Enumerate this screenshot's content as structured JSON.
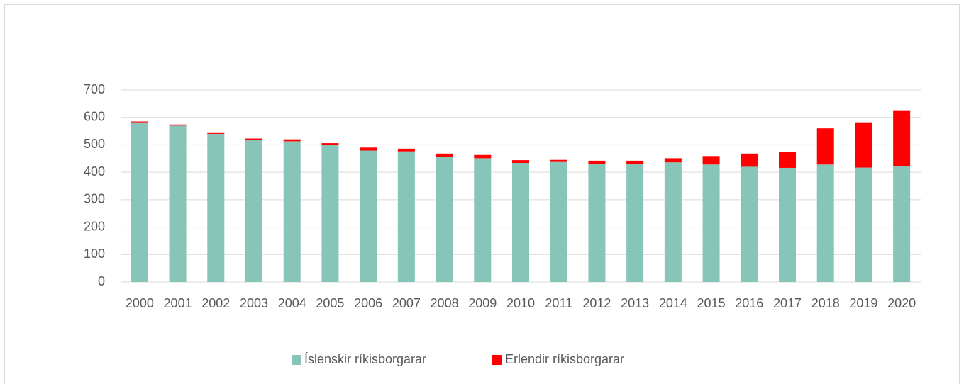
{
  "chart_data": {
    "type": "stacked_bar",
    "categories": [
      "2000",
      "2001",
      "2002",
      "2003",
      "2004",
      "2005",
      "2006",
      "2007",
      "2008",
      "2009",
      "2010",
      "2011",
      "2012",
      "2013",
      "2014",
      "2015",
      "2016",
      "2017",
      "2018",
      "2019",
      "2020"
    ],
    "series": [
      {
        "name": "Íslenskir ríkisborgarar",
        "color": "#86c5b7",
        "values": [
          582,
          570,
          540,
          519,
          513,
          500,
          479,
          476,
          456,
          451,
          434,
          440,
          430,
          429,
          436,
          428,
          420,
          416,
          428,
          417,
          421
        ]
      },
      {
        "name": "Erlendir ríkisborgarar",
        "color": "#ff0000",
        "values": [
          3,
          4,
          3,
          4,
          7,
          6,
          11,
          10,
          12,
          12,
          10,
          5,
          12,
          13,
          15,
          31,
          48,
          58,
          132,
          165,
          205
        ]
      }
    ],
    "ylim": [
      0,
      700
    ],
    "yticks": [
      0,
      100,
      200,
      300,
      400,
      500,
      600,
      700
    ],
    "grid": true,
    "legend": "bottom"
  }
}
